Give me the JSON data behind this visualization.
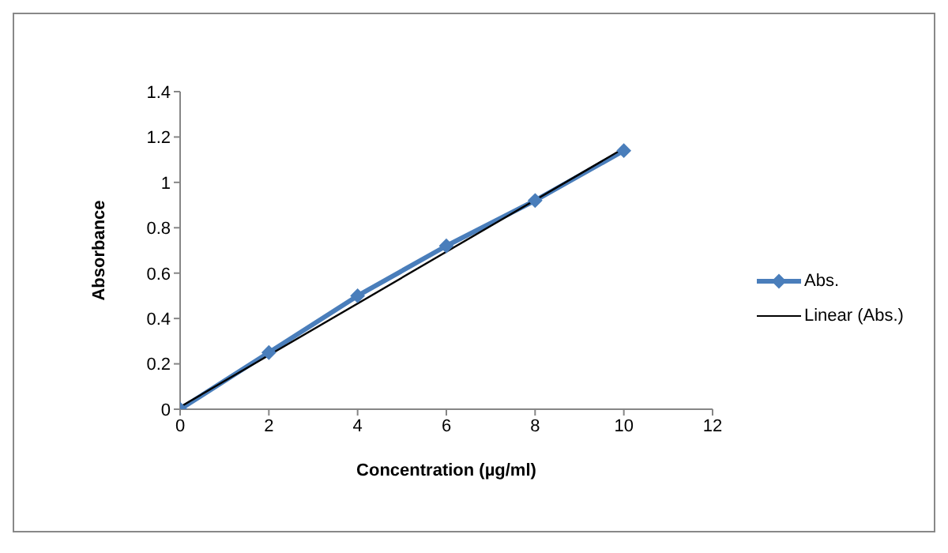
{
  "chart_data": {
    "type": "line",
    "xlabel": "Concentration (µg/ml)",
    "ylabel": "Absorbance",
    "xlim": [
      0,
      12
    ],
    "xticks": [
      0,
      2,
      4,
      6,
      8,
      10,
      12
    ],
    "ylim": [
      0,
      1.4
    ],
    "yticks": [
      0,
      0.2,
      0.4,
      0.6,
      0.8,
      1,
      1.2,
      1.4
    ],
    "grid": false,
    "legend": "right",
    "series": [
      {
        "name": "Abs.",
        "color": "#4a7ebb",
        "marker": "diamond",
        "x": [
          0,
          2,
          4,
          6,
          8,
          10
        ],
        "values": [
          0,
          0.25,
          0.5,
          0.72,
          0.92,
          1.14
        ]
      },
      {
        "name": "Linear (Abs.)",
        "color": "#000000",
        "marker": "none",
        "x": [
          0,
          10
        ],
        "values": [
          0.01,
          1.15
        ]
      }
    ]
  }
}
